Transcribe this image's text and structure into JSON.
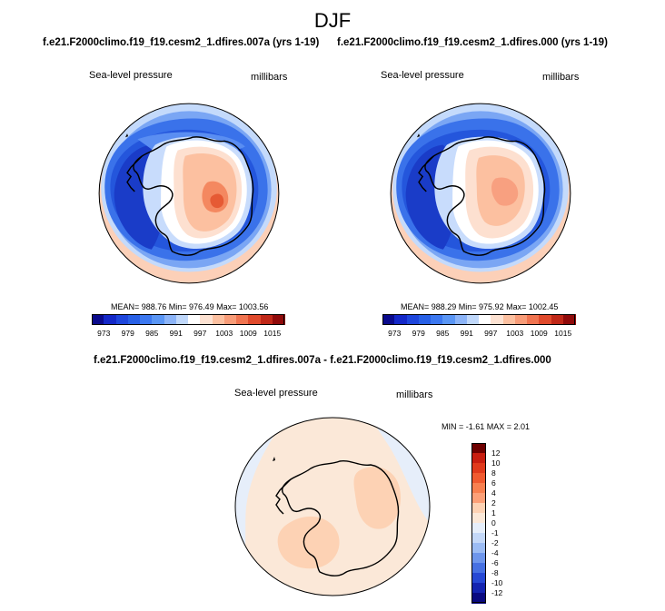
{
  "page": {
    "title": "DJF",
    "left_case": "f.e21.F2000climo.f19_f19.cesm2_1.dfires.007a (yrs 1-19)",
    "right_case": "f.e21.F2000climo.f19_f19.cesm2_1.dfires.000 (yrs 1-19)",
    "diff_title": "f.e21.F2000climo.f19_f19.cesm2_1.dfires.007a - f.e21.F2000climo.f19_f19.cesm2_1.dfires.000"
  },
  "chart_data": [
    {
      "type": "heatmap",
      "panel": "left",
      "variable": "Sea-level pressure",
      "units": "millibars",
      "stats": "MEAN= 988.76  Min= 976.49  Max= 1003.56",
      "colorbar": {
        "levels": [
          "973",
          "979",
          "985",
          "991",
          "997",
          "1003",
          "1009",
          "1015"
        ],
        "colors": [
          "#0a0a8c",
          "#1428c8",
          "#1e46dc",
          "#2860e6",
          "#3c78f0",
          "#5a96f5",
          "#8cb4f8",
          "#c0d8fb",
          "#ffffff",
          "#fde2d2",
          "#fcc0a0",
          "#f89c78",
          "#f07450",
          "#e04a2c",
          "#c02818",
          "#900a0a"
        ]
      }
    },
    {
      "type": "heatmap",
      "panel": "right",
      "variable": "Sea-level pressure",
      "units": "millibars",
      "stats": "MEAN= 988.29  Min= 975.92  Max= 1002.45",
      "colorbar": {
        "levels": [
          "973",
          "979",
          "985",
          "991",
          "997",
          "1003",
          "1009",
          "1015"
        ],
        "colors": [
          "#0a0a8c",
          "#1428c8",
          "#1e46dc",
          "#2860e6",
          "#3c78f0",
          "#5a96f5",
          "#8cb4f8",
          "#c0d8fb",
          "#ffffff",
          "#fde2d2",
          "#fcc0a0",
          "#f89c78",
          "#f07450",
          "#e04a2c",
          "#c02818",
          "#900a0a"
        ]
      }
    },
    {
      "type": "heatmap",
      "panel": "difference",
      "variable": "Sea-level pressure",
      "units": "millibars",
      "stats": "MIN =  -1.61  MAX =   2.01",
      "colorbar": {
        "levels": [
          "12",
          "10",
          "8",
          "6",
          "4",
          "2",
          "1",
          "0",
          "-1",
          "-2",
          "-4",
          "-6",
          "-8",
          "-10",
          "-12"
        ],
        "colors": [
          "#6e0000",
          "#c81e10",
          "#e03a1c",
          "#f05a30",
          "#f88050",
          "#fca078",
          "#fdd2b4",
          "#fbe8d8",
          "#e6eefa",
          "#c4d8f8",
          "#9cbcf4",
          "#6e96ec",
          "#4670e2",
          "#2648d4",
          "#1424b0",
          "#0a0a80"
        ]
      }
    }
  ]
}
